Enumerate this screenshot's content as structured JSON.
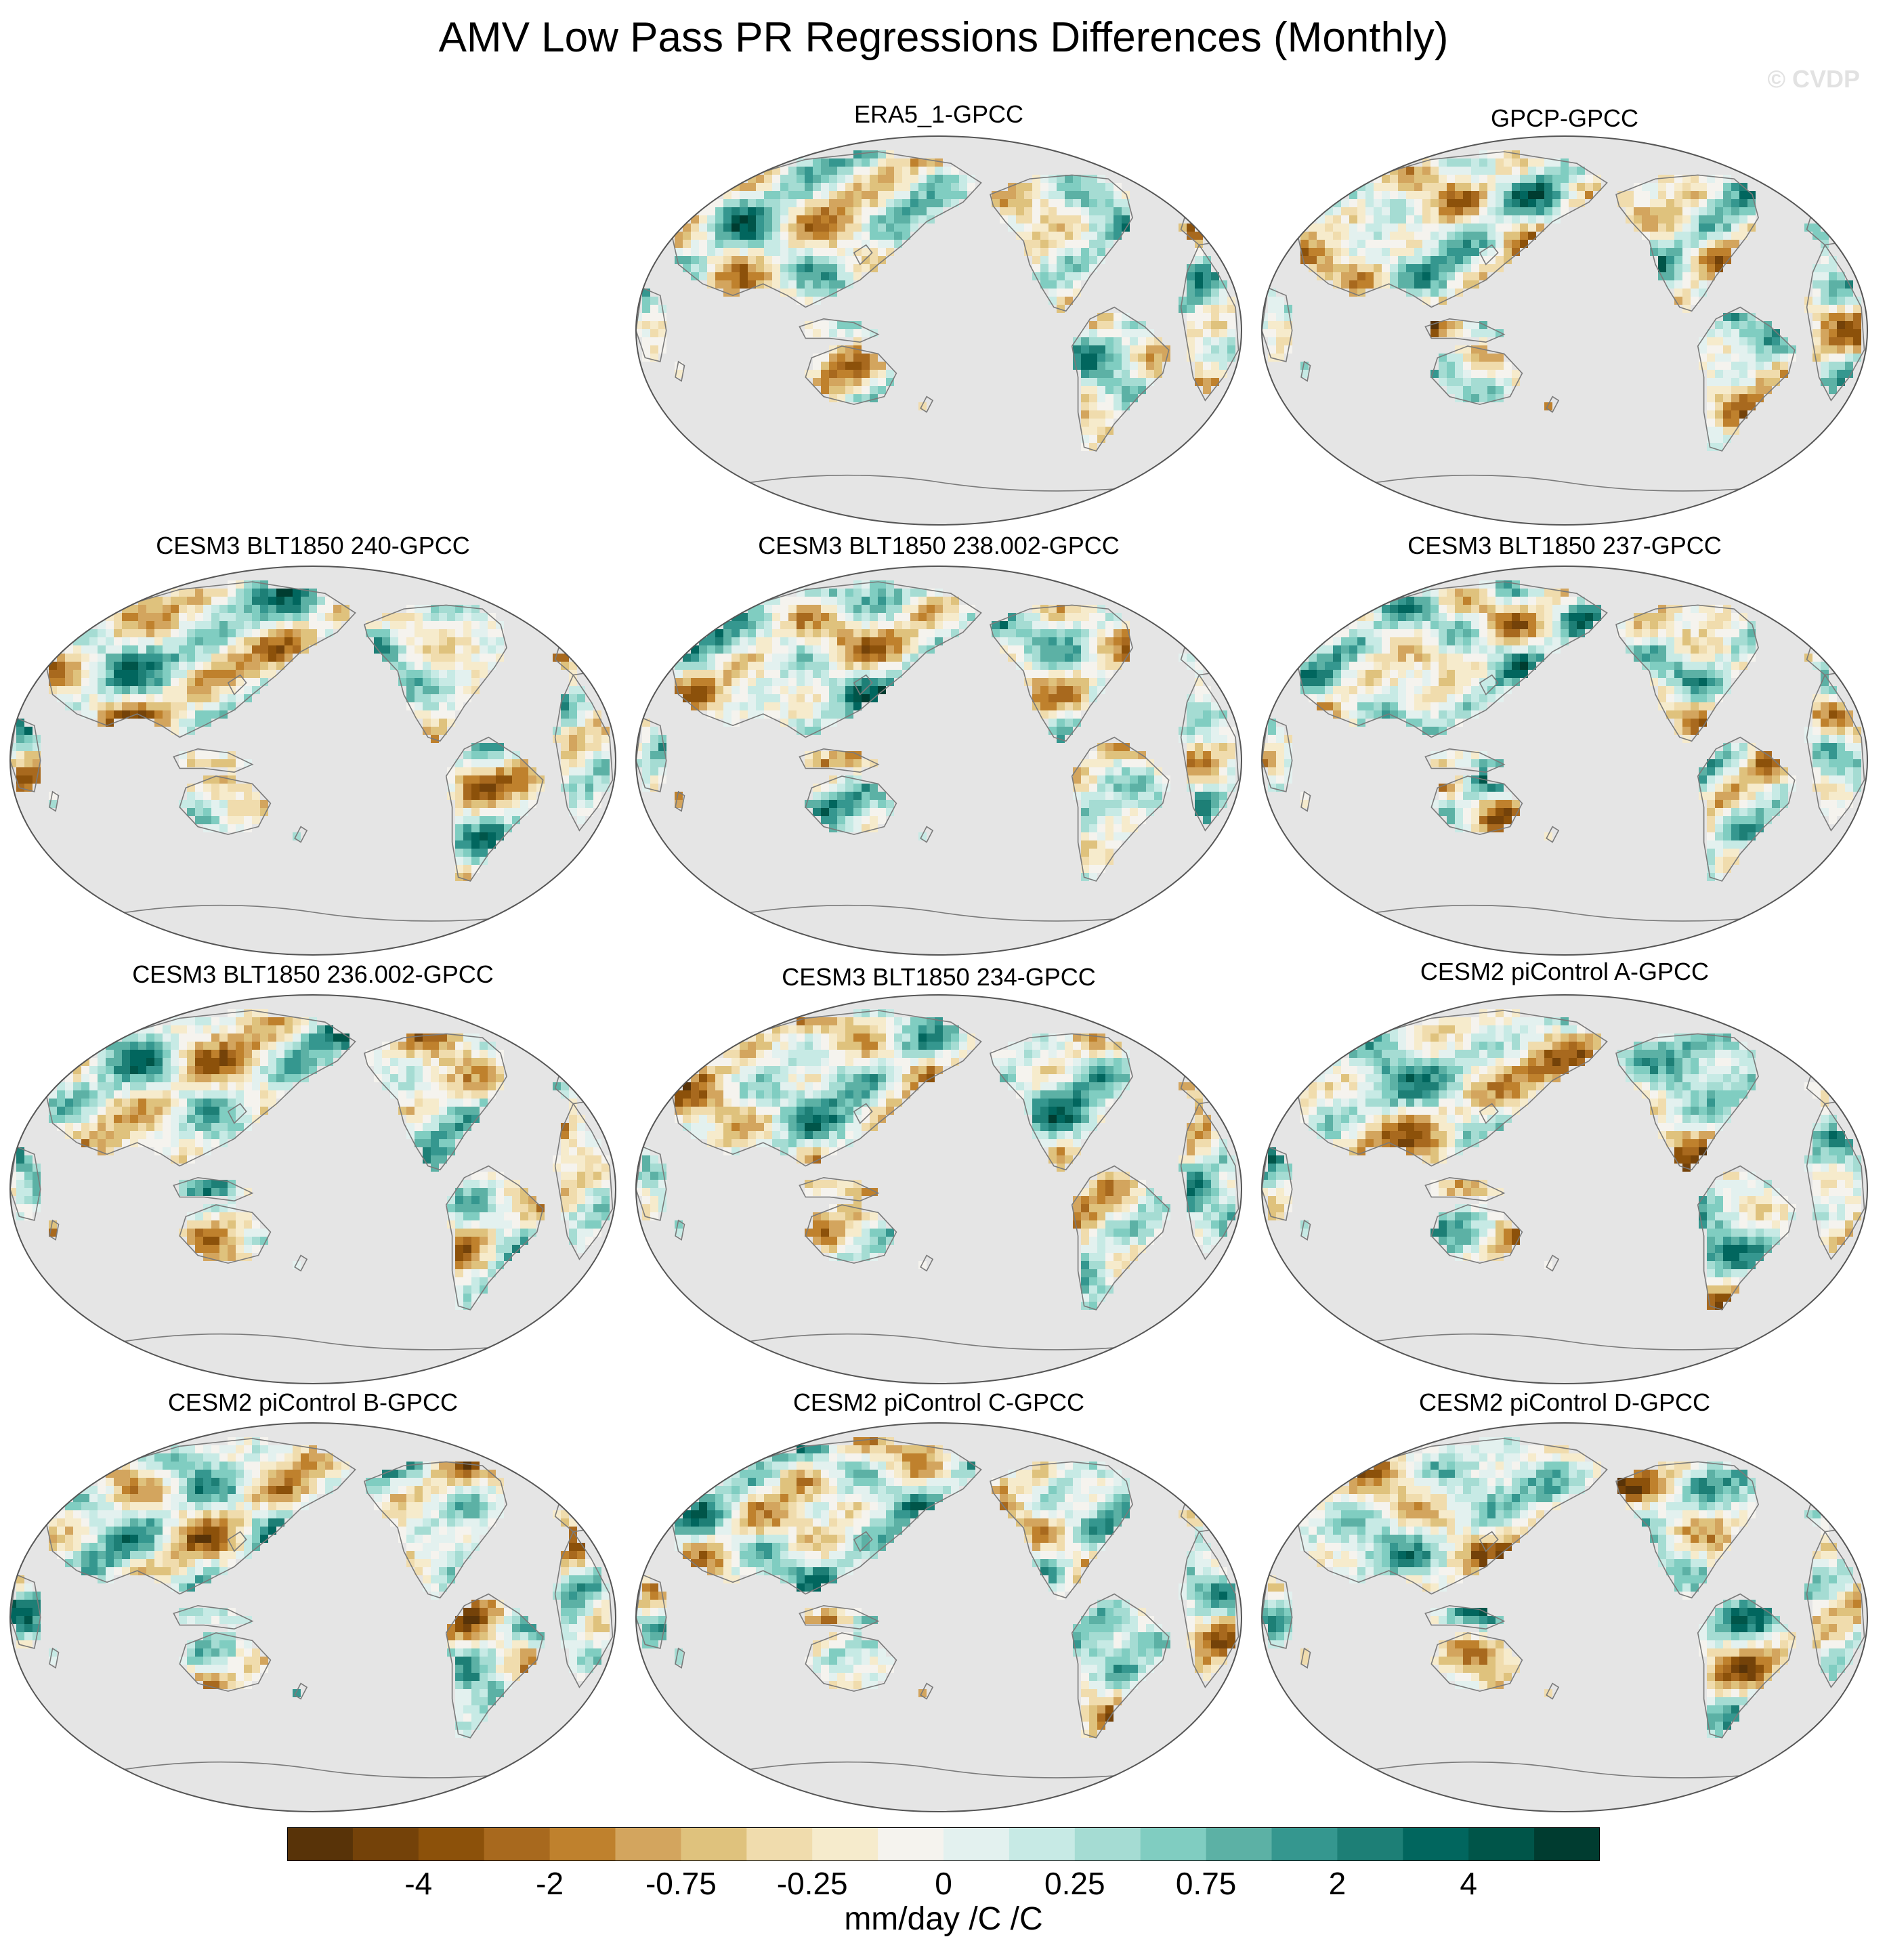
{
  "title": "AMV Low Pass PR Regressions Differences (Monthly)",
  "watermark": "© CVDP",
  "panels": [
    {
      "title": "ERA5_1-GPCC",
      "pattern": 1
    },
    {
      "title": "GPCP-GPCC",
      "pattern": 2
    },
    {
      "title": "CESM3 BLT1850 240-GPCC",
      "pattern": 3
    },
    {
      "title": "CESM3 BLT1850 238.002-GPCC",
      "pattern": 4
    },
    {
      "title": "CESM3 BLT1850 237-GPCC",
      "pattern": 5
    },
    {
      "title": "CESM3 BLT1850 236.002-GPCC",
      "pattern": 6
    },
    {
      "title": "CESM3 BLT1850 234-GPCC",
      "pattern": 7
    },
    {
      "title": "CESM2 piControl A-GPCC",
      "pattern": 8
    },
    {
      "title": "CESM2 piControl B-GPCC",
      "pattern": 9
    },
    {
      "title": "CESM2 piControl C-GPCC",
      "pattern": 10
    },
    {
      "title": "CESM2 piControl D-GPCC",
      "pattern": 11
    }
  ],
  "colorbar": {
    "units": "mm/day /C /C",
    "colors": [
      "#583308",
      "#744209",
      "#8c510a",
      "#a8691e",
      "#bf812d",
      "#d3a55e",
      "#dfc27d",
      "#f0dcad",
      "#f6ebcc",
      "#f5f3ee",
      "#e3f1ef",
      "#c7eae5",
      "#a5dcd3",
      "#80cdc1",
      "#5cb1a5",
      "#35978f",
      "#1d7f76",
      "#01665e",
      "#005549",
      "#003c30"
    ],
    "tick_labels": [
      "-4",
      "-2",
      "-0.75",
      "-0.25",
      "0",
      "0.25",
      "0.75",
      "2",
      "4"
    ]
  },
  "colors": {
    "ocean": "#e5e5e5",
    "coast": "#7a7a7a"
  }
}
